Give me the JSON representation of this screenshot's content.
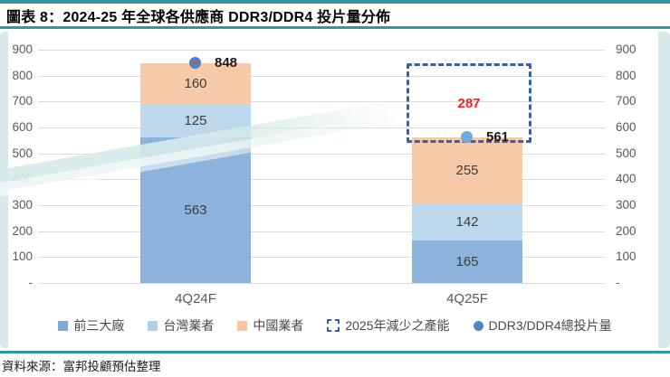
{
  "figure": {
    "title": "圖表 8：2024-25 年全球各供應商 DDR3/DDR4 投片量分佈",
    "source": "資料來源：富邦投顧預估整理",
    "accent_teal": "#2E99A5"
  },
  "chart_data": {
    "type": "bar",
    "stacked": true,
    "title": "2024-25 年全球各供應商 DDR3/DDR4 投片量分佈",
    "categories": [
      "4Q24F",
      "4Q25F"
    ],
    "series": [
      {
        "name": "前三大廠",
        "color": "#8DB3DC",
        "values": [
          563,
          165
        ]
      },
      {
        "name": "台灣業者",
        "color": "#BDD7EB",
        "values": [
          125,
          142
        ]
      },
      {
        "name": "中國業者",
        "color": "#F6C9A8",
        "values": [
          160,
          255
        ]
      }
    ],
    "totals": {
      "name": "DDR3/DDR4總投片量",
      "values": [
        848,
        561
      ],
      "marker_colors": [
        "#4E81BD",
        "#6FA8DC"
      ],
      "first_marker_inner_dash": true,
      "label_color": "#1A1A1A"
    },
    "reduction_box": {
      "name": "2025年減少之產能",
      "category": "4Q25F",
      "value": 287,
      "from": 561,
      "to": 848,
      "border_color": "#3A5EAE",
      "label_color": "#FF1F1F"
    },
    "value_label_color": "#3F3F3F",
    "ylim": [
      0,
      900
    ],
    "ytick_step": 100,
    "zero_tick_label": "-",
    "grid": true,
    "legend_position": "bottom",
    "axes": {
      "left_ticks": [
        "900",
        "800",
        "700",
        "600",
        "500",
        "400",
        "300",
        "200",
        "100",
        "-"
      ],
      "right_ticks": [
        "900",
        "800",
        "700",
        "600",
        "500",
        "400",
        "300",
        "200",
        "100",
        "-"
      ]
    }
  },
  "legend": {
    "items": [
      {
        "label": "前三大廠",
        "swatch": "square",
        "color": "#7FA9D6"
      },
      {
        "label": "台灣業者",
        "swatch": "square",
        "color": "#AFCFE9"
      },
      {
        "label": "中國業者",
        "swatch": "square",
        "color": "#F2C6A0"
      },
      {
        "label": "2025年減少之產能",
        "swatch": "dashed-square",
        "color": "#3A5EAE"
      },
      {
        "label": "DDR3/DDR4總投片量",
        "swatch": "circle",
        "color": "#4E86C4"
      }
    ]
  }
}
